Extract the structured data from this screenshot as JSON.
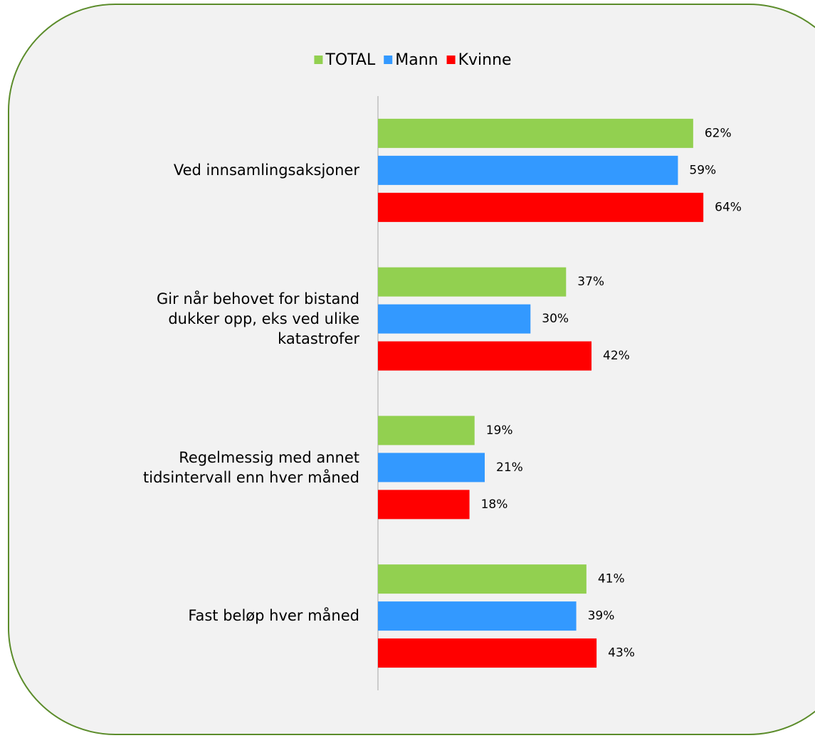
{
  "chart_data": {
    "type": "hbar",
    "categories": [
      "Ved innsamlingsaksjoner",
      "Gir når behovet for bistand\ndukker opp, eks ved ulike\nkatastrofer",
      "Regelmessig med annet\ntidsintervall enn hver måned",
      "Fast beløp hver måned"
    ],
    "series": [
      {
        "name": "TOTAL",
        "color": "#92d050",
        "values": [
          62,
          37,
          19,
          41
        ],
        "value_labels": [
          "62%",
          "37%",
          "19%",
          "41%"
        ]
      },
      {
        "name": "Mann",
        "color": "#3399ff",
        "values": [
          59,
          30,
          21,
          39
        ],
        "value_labels": [
          "59%",
          "30%",
          "21%",
          "39%"
        ]
      },
      {
        "name": "Kvinne",
        "color": "#ff0000",
        "values": [
          64,
          42,
          18,
          43
        ],
        "value_labels": [
          "64%",
          "42%",
          "18%",
          "43%"
        ]
      }
    ],
    "xlim": [
      0,
      70
    ],
    "legend": "top"
  }
}
